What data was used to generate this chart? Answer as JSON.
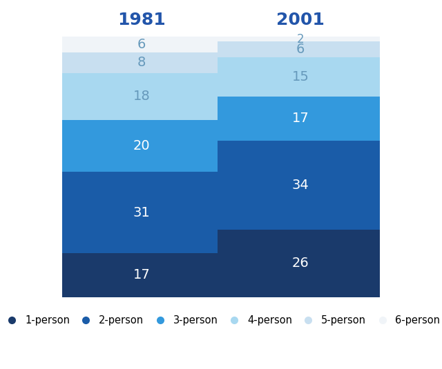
{
  "years": [
    "1981",
    "2001"
  ],
  "categories": [
    "1-person",
    "2-person",
    "3-person",
    "4-person",
    "5-person",
    "6-person"
  ],
  "values_1981": [
    17,
    31,
    20,
    18,
    8,
    6
  ],
  "values_2001": [
    26,
    34,
    17,
    15,
    6,
    2
  ],
  "colors": [
    "#1a3a6b",
    "#1a5ca8",
    "#3399dd",
    "#a8d8f0",
    "#c8dff0",
    "#f0f4f8"
  ],
  "title_color": "#2255aa",
  "label_color_dark": "#ffffff",
  "label_color_light": "#6699bb",
  "background_color": "#ffffff",
  "bar_width": 0.52,
  "title_fontsize": 18,
  "label_fontsize": 14,
  "legend_fontsize": 10.5
}
